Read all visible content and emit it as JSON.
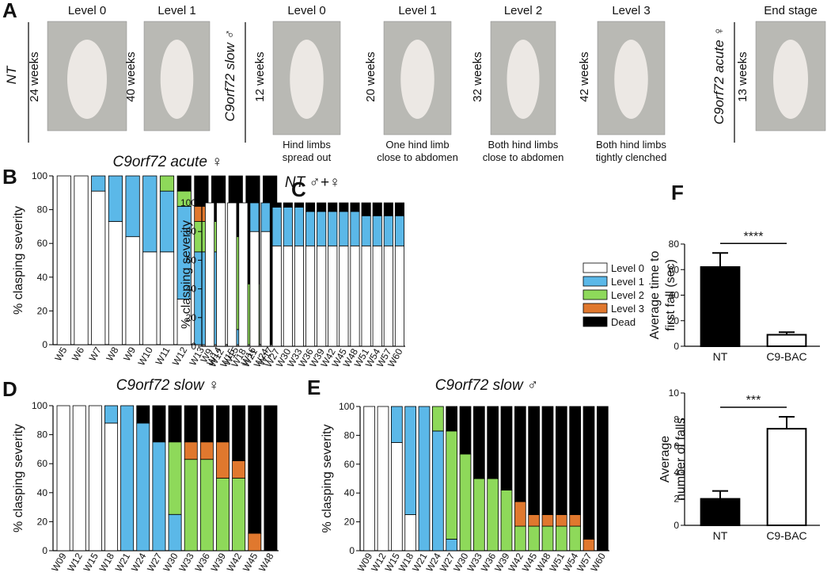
{
  "panel_labels": [
    "A",
    "B",
    "C",
    "D",
    "E",
    "F"
  ],
  "panel_a": {
    "groups": [
      {
        "label": "NT",
        "items": [
          {
            "level": "Level 0",
            "age": "24 weeks"
          },
          {
            "level": "Level 1",
            "age": "40 weeks"
          }
        ]
      },
      {
        "label": "C9orf72 slow ♂",
        "items": [
          {
            "level": "Level 0",
            "age": "12 weeks",
            "caption": [
              "Hind limbs",
              "spread out"
            ]
          },
          {
            "level": "Level 1",
            "age": "20 weeks",
            "caption": [
              "One hind limb",
              "close to abdomen"
            ]
          },
          {
            "level": "Level 2",
            "age": "32 weeks",
            "caption": [
              "Both hind limbs",
              "close to abdomen"
            ]
          },
          {
            "level": "Level 3",
            "age": "42 weeks",
            "caption": [
              "Both hind limbs",
              "tightly clenched"
            ]
          }
        ]
      },
      {
        "label": "C9orf72 acute ♀",
        "items": [
          {
            "level": "End stage",
            "age": "13 weeks"
          }
        ]
      }
    ]
  },
  "chart_data": [
    {
      "type": "stacked_bar",
      "title": "C9orf72 acute ♀",
      "ylabel": "% clasping severity",
      "categories": [
        "W5",
        "W6",
        "W7",
        "W8",
        "W9",
        "W10",
        "W11",
        "W12",
        "W13",
        "W14",
        "W15",
        "W16",
        "W17"
      ],
      "series": [
        {
          "name": "Level 0",
          "color": "#ffffff",
          "values": [
            100,
            100,
            91,
            73,
            64,
            55,
            55,
            27,
            0,
            0,
            0,
            0,
            0
          ]
        },
        {
          "name": "Level 1",
          "color": "#5bb8e8",
          "values": [
            0,
            0,
            9,
            27,
            36,
            45,
            36,
            55,
            55,
            55,
            9,
            0,
            0
          ]
        },
        {
          "name": "Level 2",
          "color": "#8ed95a",
          "values": [
            0,
            0,
            0,
            0,
            0,
            0,
            9,
            9,
            18,
            18,
            55,
            36,
            0
          ]
        },
        {
          "name": "Level 3",
          "color": "#e0782e",
          "values": [
            0,
            0,
            0,
            0,
            0,
            0,
            0,
            0,
            9,
            0,
            0,
            0,
            0
          ]
        },
        {
          "name": "Dead",
          "color": "#000000",
          "values": [
            0,
            0,
            0,
            0,
            0,
            0,
            0,
            9,
            18,
            27,
            36,
            64,
            100
          ]
        }
      ],
      "ylim": [
        0,
        100
      ],
      "yticks": [
        0,
        20,
        40,
        60,
        80,
        100
      ]
    },
    {
      "type": "stacked_bar",
      "title": "NT ♂+♀",
      "ylabel": "% clasping severity",
      "legend": "right",
      "categories": [
        "W9",
        "W12",
        "W15",
        "W18",
        "W21",
        "W24",
        "W27",
        "W30",
        "W33",
        "W36",
        "W39",
        "W42",
        "W45",
        "W48",
        "W51",
        "W54",
        "W57",
        "W60"
      ],
      "series": [
        {
          "name": "Level 0",
          "color": "#ffffff",
          "values": [
            100,
            100,
            100,
            100,
            80,
            80,
            70,
            70,
            70,
            70,
            70,
            70,
            70,
            70,
            70,
            70,
            70,
            70
          ]
        },
        {
          "name": "Level 1",
          "color": "#5bb8e8",
          "values": [
            0,
            0,
            0,
            0,
            20,
            20,
            27,
            27,
            27,
            24,
            24,
            24,
            24,
            24,
            21,
            21,
            21,
            21
          ]
        },
        {
          "name": "Level 2",
          "color": "#8ed95a",
          "values": [
            0,
            0,
            0,
            0,
            0,
            0,
            0,
            0,
            0,
            0,
            0,
            0,
            0,
            0,
            0,
            0,
            0,
            0
          ]
        },
        {
          "name": "Level 3",
          "color": "#e0782e",
          "values": [
            0,
            0,
            0,
            0,
            0,
            0,
            0,
            0,
            0,
            0,
            0,
            0,
            0,
            0,
            0,
            0,
            0,
            0
          ]
        },
        {
          "name": "Dead",
          "color": "#000000",
          "values": [
            0,
            0,
            0,
            0,
            0,
            0,
            3,
            3,
            3,
            6,
            6,
            6,
            6,
            6,
            9,
            9,
            9,
            9
          ]
        }
      ],
      "ylim": [
        0,
        100
      ],
      "yticks": [
        0,
        20,
        40,
        60,
        80,
        100
      ]
    },
    {
      "type": "stacked_bar",
      "title": "C9orf72 slow ♀",
      "ylabel": "% clasping severity",
      "categories": [
        "W09",
        "W12",
        "W15",
        "W18",
        "W21",
        "W24",
        "W27",
        "W30",
        "W33",
        "W36",
        "W39",
        "W42",
        "W45",
        "W48"
      ],
      "series": [
        {
          "name": "Level 0",
          "color": "#ffffff",
          "values": [
            100,
            100,
            100,
            88,
            0,
            0,
            0,
            0,
            0,
            0,
            0,
            0,
            0,
            0
          ]
        },
        {
          "name": "Level 1",
          "color": "#5bb8e8",
          "values": [
            0,
            0,
            0,
            12,
            100,
            88,
            75,
            25,
            0,
            0,
            0,
            0,
            0,
            0
          ]
        },
        {
          "name": "Level 2",
          "color": "#8ed95a",
          "values": [
            0,
            0,
            0,
            0,
            0,
            0,
            0,
            50,
            63,
            63,
            50,
            50,
            0,
            0
          ]
        },
        {
          "name": "Level 3",
          "color": "#e0782e",
          "values": [
            0,
            0,
            0,
            0,
            0,
            0,
            0,
            0,
            12,
            12,
            25,
            12,
            12,
            0
          ]
        },
        {
          "name": "Dead",
          "color": "#000000",
          "values": [
            0,
            0,
            0,
            0,
            0,
            12,
            25,
            25,
            25,
            25,
            25,
            38,
            88,
            100
          ]
        }
      ],
      "ylim": [
        0,
        100
      ],
      "yticks": [
        0,
        20,
        40,
        60,
        80,
        100
      ]
    },
    {
      "type": "stacked_bar",
      "title": "C9orf72 slow ♂",
      "ylabel": "% clasping severity",
      "categories": [
        "W09",
        "W12",
        "W15",
        "W18",
        "W21",
        "W24",
        "W27",
        "W30",
        "W33",
        "W36",
        "W39",
        "W42",
        "W45",
        "W48",
        "W51",
        "W54",
        "W57",
        "W60"
      ],
      "series": [
        {
          "name": "Level 0",
          "color": "#ffffff",
          "values": [
            100,
            100,
            75,
            25,
            0,
            0,
            0,
            0,
            0,
            0,
            0,
            0,
            0,
            0,
            0,
            0,
            0,
            0
          ]
        },
        {
          "name": "Level 1",
          "color": "#5bb8e8",
          "values": [
            0,
            0,
            25,
            75,
            100,
            83,
            8,
            0,
            0,
            0,
            0,
            0,
            0,
            0,
            0,
            0,
            0,
            0
          ]
        },
        {
          "name": "Level 2",
          "color": "#8ed95a",
          "values": [
            0,
            0,
            0,
            0,
            0,
            17,
            75,
            67,
            50,
            50,
            42,
            17,
            17,
            17,
            17,
            17,
            0,
            0
          ]
        },
        {
          "name": "Level 3",
          "color": "#e0782e",
          "values": [
            0,
            0,
            0,
            0,
            0,
            0,
            0,
            0,
            0,
            0,
            0,
            17,
            8,
            8,
            8,
            8,
            8,
            0
          ]
        },
        {
          "name": "Dead",
          "color": "#000000",
          "values": [
            0,
            0,
            0,
            0,
            0,
            0,
            17,
            33,
            50,
            50,
            58,
            66,
            75,
            75,
            75,
            75,
            92,
            100
          ]
        }
      ],
      "ylim": [
        0,
        100
      ],
      "yticks": [
        0,
        20,
        40,
        60,
        80,
        100
      ]
    },
    {
      "type": "bar",
      "ylabel": [
        "Average time to",
        "first fall (sec)"
      ],
      "categories": [
        "NT",
        "C9-BAC"
      ],
      "values": [
        62,
        9
      ],
      "errors": [
        11,
        2
      ],
      "colors": [
        "#000000",
        "#ffffff"
      ],
      "edgecolor": "#000000",
      "annotation": "****",
      "ylim": [
        0,
        80
      ],
      "yticks": [
        0,
        20,
        40,
        60,
        80
      ]
    },
    {
      "type": "bar",
      "ylabel": [
        "Average",
        "number of falls"
      ],
      "categories": [
        "NT",
        "C9-BAC"
      ],
      "values": [
        2,
        7.3
      ],
      "errors": [
        0.6,
        0.9
      ],
      "colors": [
        "#000000",
        "#ffffff"
      ],
      "edgecolor": "#000000",
      "annotation": "***",
      "ylim": [
        0,
        10
      ],
      "yticks": [
        0,
        2,
        4,
        6,
        8,
        10
      ]
    }
  ]
}
